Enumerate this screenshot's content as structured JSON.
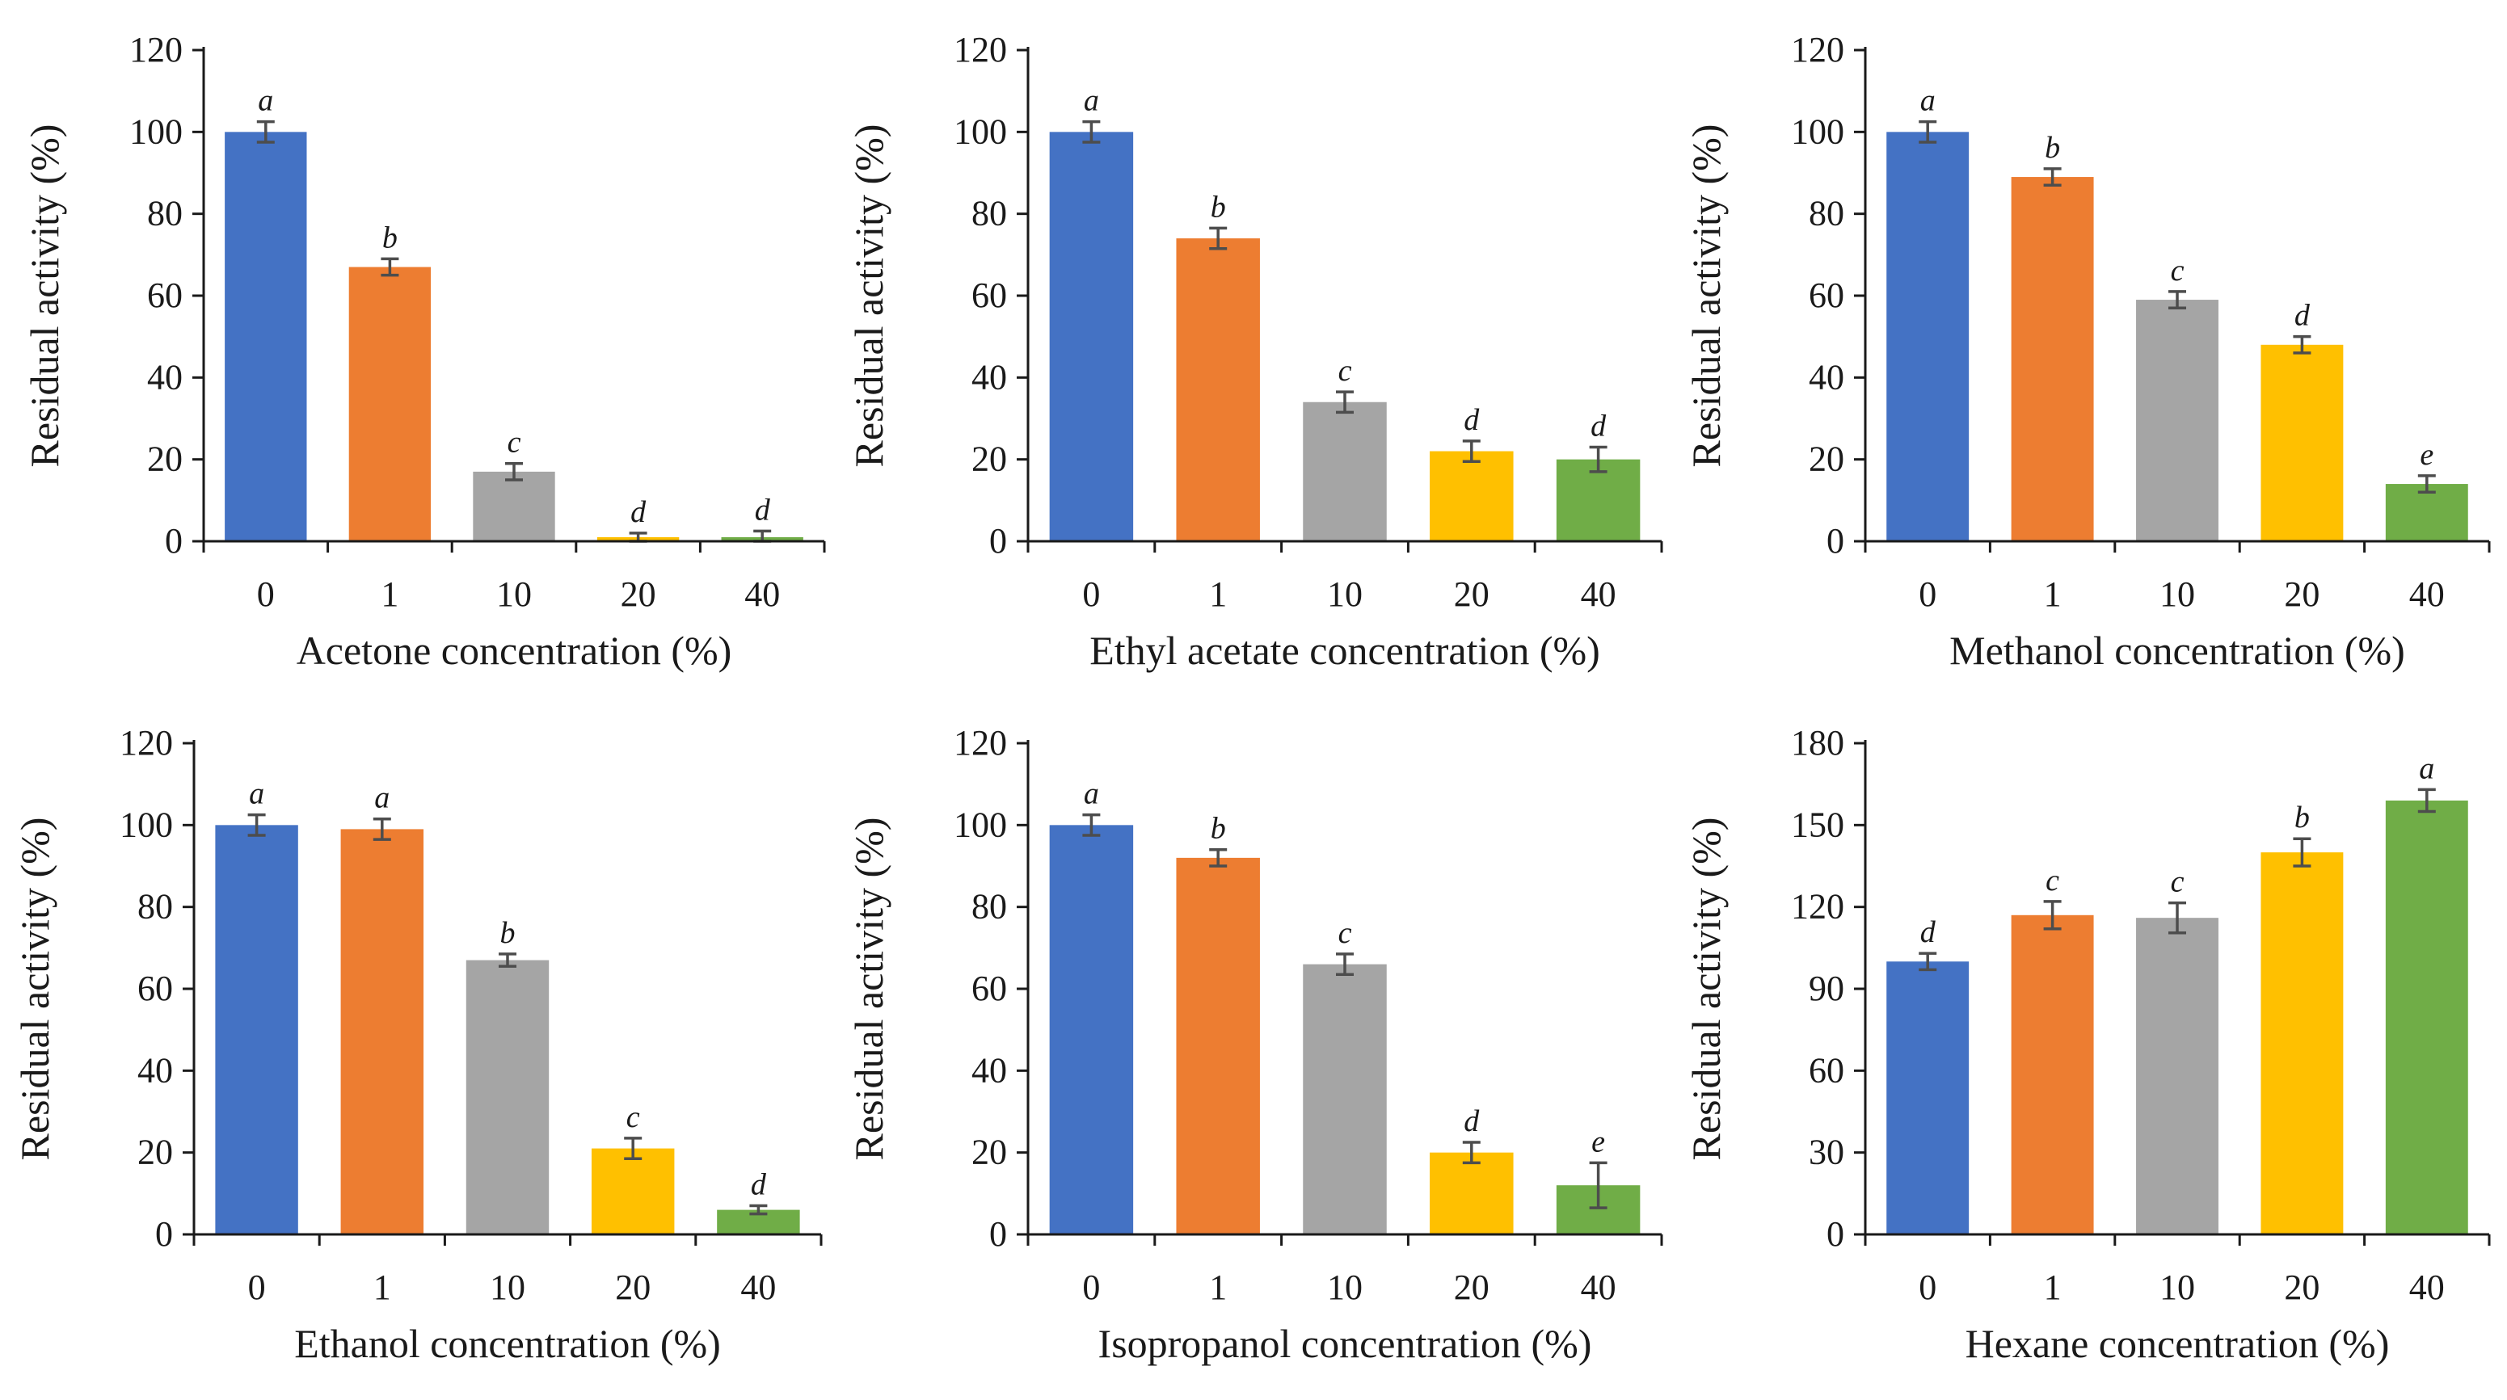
{
  "colors": {
    "blue": "#4472C4",
    "orange": "#ED7D31",
    "gray": "#A5A5A5",
    "yellow": "#FFC000",
    "green": "#70AD47",
    "axis": "#1a1a1a",
    "errorbar": "#4d4d4d"
  },
  "chart_data": [
    {
      "type": "bar",
      "xlabel": "Acetone concentration (%)",
      "ylabel": "Residual activity (%)",
      "categories": [
        "0",
        "1",
        "10",
        "20",
        "40"
      ],
      "values": [
        100,
        67,
        17,
        1,
        1
      ],
      "errors": [
        2.5,
        2,
        2,
        1,
        1.5
      ],
      "letters": [
        "a",
        "b",
        "c",
        "d",
        "d"
      ],
      "ylim": [
        0,
        120
      ],
      "yticks": [
        "0",
        "20",
        "40",
        "60",
        "80",
        "100",
        "120"
      ]
    },
    {
      "type": "bar",
      "xlabel": "Ethyl acetate concentration (%)",
      "ylabel": "Residual activity (%)",
      "categories": [
        "0",
        "1",
        "10",
        "20",
        "40"
      ],
      "values": [
        100,
        74,
        34,
        22,
        20
      ],
      "errors": [
        2.5,
        2.5,
        2.5,
        2.5,
        3
      ],
      "letters": [
        "a",
        "b",
        "c",
        "d",
        "d"
      ],
      "ylim": [
        0,
        120
      ],
      "yticks": [
        "0",
        "20",
        "40",
        "60",
        "80",
        "100",
        "120"
      ]
    },
    {
      "type": "bar",
      "xlabel": "Methanol concentration (%)",
      "ylabel": "Residual activity (%)",
      "categories": [
        "0",
        "1",
        "10",
        "20",
        "40"
      ],
      "values": [
        100,
        89,
        59,
        48,
        14
      ],
      "errors": [
        2.5,
        2,
        2,
        2,
        2
      ],
      "letters": [
        "a",
        "b",
        "c",
        "d",
        "e"
      ],
      "ylim": [
        0,
        120
      ],
      "yticks": [
        "0",
        "20",
        "40",
        "60",
        "80",
        "100",
        "120"
      ]
    },
    {
      "type": "bar",
      "xlabel": "Ethanol concentration (%)",
      "ylabel": "Residual activity (%)",
      "categories": [
        "0",
        "1",
        "10",
        "20",
        "40"
      ],
      "values": [
        100,
        99,
        67,
        21,
        6
      ],
      "errors": [
        2.5,
        2.5,
        1.5,
        2.5,
        1
      ],
      "letters": [
        "a",
        "a",
        "b",
        "c",
        "d"
      ],
      "ylim": [
        0,
        120
      ],
      "yticks": [
        "0",
        "20",
        "40",
        "60",
        "80",
        "100",
        "120"
      ]
    },
    {
      "type": "bar",
      "xlabel": "Isopropanol concentration (%)",
      "ylabel": "Residual activity (%)",
      "categories": [
        "0",
        "1",
        "10",
        "20",
        "40"
      ],
      "values": [
        100,
        92,
        66,
        20,
        12
      ],
      "errors": [
        2.5,
        2,
        2.5,
        2.5,
        5.5
      ],
      "letters": [
        "a",
        "b",
        "c",
        "d",
        "e"
      ],
      "ylim": [
        0,
        120
      ],
      "yticks": [
        "0",
        "20",
        "40",
        "60",
        "80",
        "100",
        "120"
      ]
    },
    {
      "type": "bar",
      "xlabel": "Hexane concentration (%)",
      "ylabel": "Residual activity (%)",
      "categories": [
        "0",
        "1",
        "10",
        "20",
        "40"
      ],
      "values": [
        100,
        117,
        116,
        140,
        159
      ],
      "errors": [
        3,
        5,
        5.5,
        5,
        4
      ],
      "letters": [
        "d",
        "c",
        "c",
        "b",
        "a"
      ],
      "ylim": [
        0,
        180
      ],
      "yticks": [
        "0",
        "30",
        "60",
        "90",
        "120",
        "150",
        "180"
      ]
    }
  ]
}
